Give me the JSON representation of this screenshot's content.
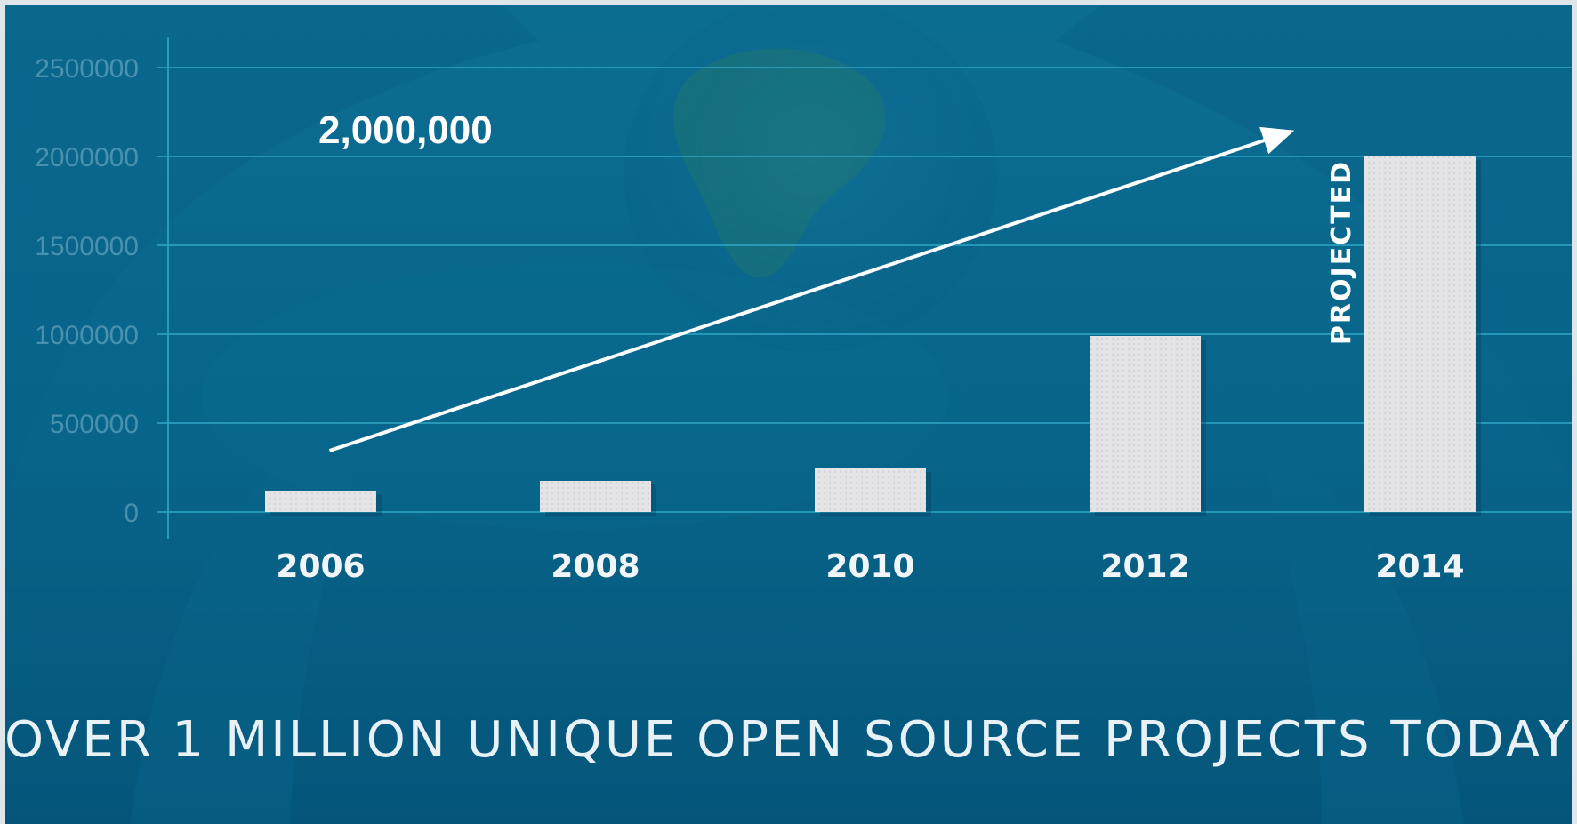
{
  "chart_data": {
    "type": "bar",
    "categories": [
      "2006",
      "2008",
      "2010",
      "2012",
      "2014"
    ],
    "values": [
      120000,
      175000,
      245000,
      990000,
      2000000
    ],
    "ylim": [
      0,
      2500000
    ],
    "yticks": [
      0,
      500000,
      1000000,
      1500000,
      2000000,
      2500000
    ],
    "ytick_labels": [
      "0",
      "500000",
      "1000000",
      "1500000",
      "2000000",
      "2500000"
    ],
    "grid": true,
    "title": "OVER 1 MILLION UNIQUE OPEN SOURCE PROJECTS TODAY",
    "annotations": [
      {
        "text": "2,000,000"
      },
      {
        "text": "PROJECTED",
        "category": "2014"
      }
    ],
    "trend_arrow": {
      "from_category": "2006",
      "to_category": "2014"
    }
  },
  "colors": {
    "background_top": "#0b6a8e",
    "background_bottom": "#05587a",
    "bar_fill": "#e2e2e4",
    "gridline": "#2ea9c9",
    "axis_text": "#6fb3cc",
    "arrow": "#ffffff",
    "text": "#ffffff"
  }
}
